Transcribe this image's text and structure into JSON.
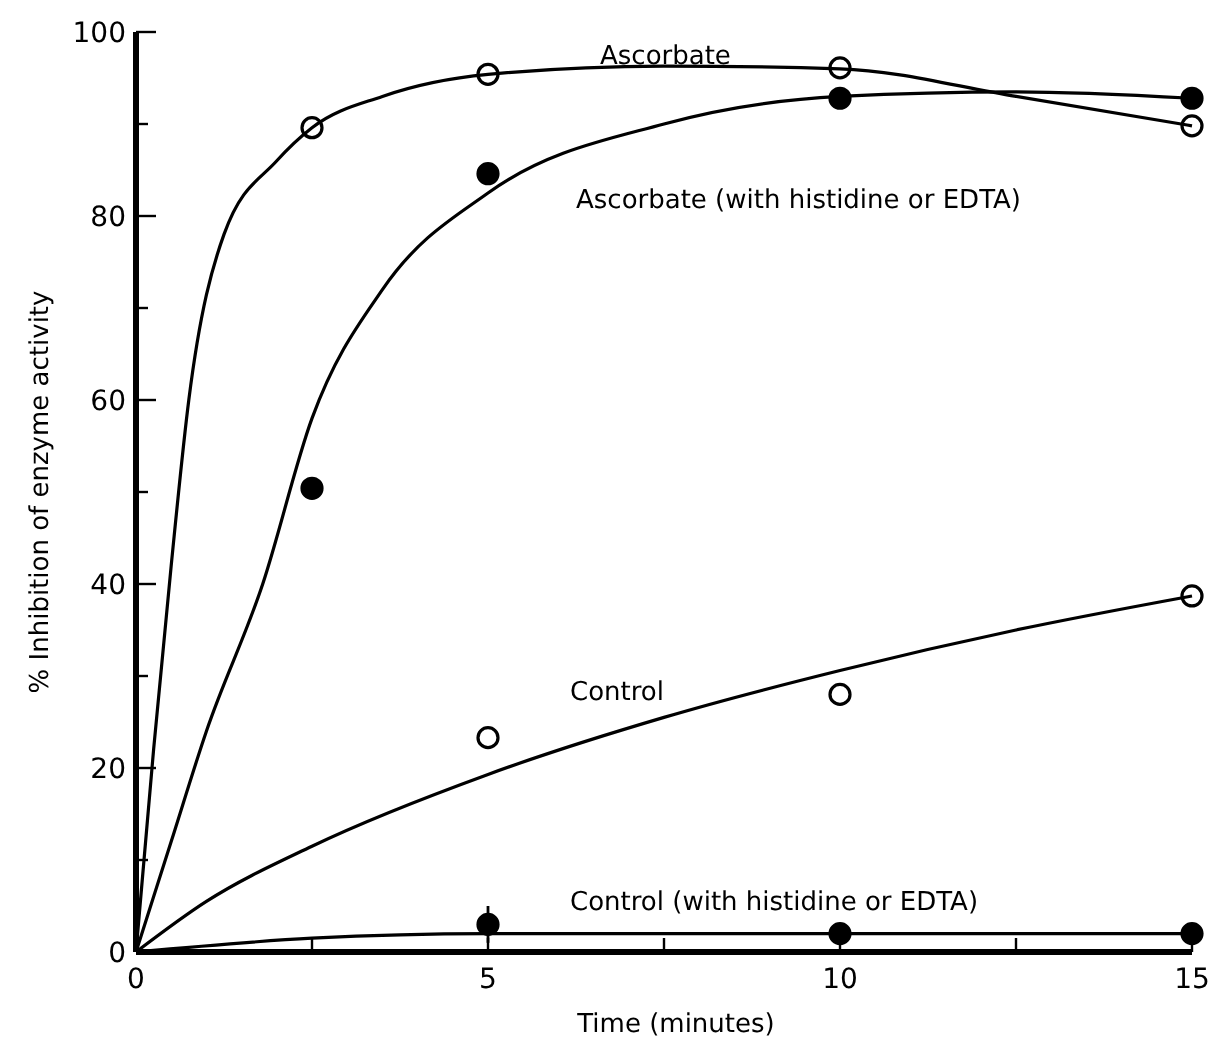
{
  "chart_data": {
    "type": "scatter",
    "xlabel": "Time (minutes)",
    "ylabel": "% Inhibition of enzyme activity",
    "xlim": [
      0,
      15
    ],
    "ylim": [
      0,
      100
    ],
    "xticks": [
      0,
      {
        "value": 2.5,
        "label": null
      },
      5,
      {
        "value": 7.5,
        "label": null
      },
      10,
      {
        "value": 12.5,
        "label": null
      },
      15
    ],
    "yticks": [
      0,
      {
        "value": 10,
        "label": null
      },
      20,
      {
        "value": 30,
        "label": null
      },
      40,
      {
        "value": 50,
        "label": null
      },
      60,
      {
        "value": 70,
        "label": null
      },
      80,
      {
        "value": 90,
        "label": null
      },
      100
    ],
    "grid": false,
    "legend": false,
    "marker": "circle",
    "series": [
      {
        "color": "#ffffff",
        "x": [
          2.5,
          5,
          10,
          15
        ],
        "values": [
          89.6,
          95.4,
          96.1,
          89.8
        ]
      },
      {
        "color": "#000000",
        "x": [
          2.5,
          5,
          10,
          15
        ],
        "values": [
          50.4,
          84.6,
          92.8,
          92.8
        ]
      },
      {
        "color": "#ffffff",
        "x": [
          5,
          10,
          15
        ],
        "values": [
          23.3,
          28,
          38.7
        ]
      },
      {
        "color": "#000000",
        "x": [
          5,
          10,
          15
        ],
        "values": [
          3,
          2,
          2
        ],
        "errors": [
          2,
          null,
          null
        ]
      },
      {
        "type": "line",
        "name": "Ascorbate",
        "color": "#000000",
        "marker": "none",
        "line_style": "solid",
        "x": [
          0,
          0.25,
          0.5,
          0.75,
          1.25,
          2,
          2.5,
          3.5,
          5,
          7.5,
          10,
          12.5,
          15
        ],
        "values": [
          0,
          22,
          42,
          60,
          78,
          86,
          89.6,
          93,
          95.4,
          96.3,
          96,
          93,
          89.8
        ]
      },
      {
        "type": "line",
        "name": "Ascorbate (with histidine or EDTA)",
        "color": "#000000",
        "marker": "none",
        "line_style": "solid",
        "x": [
          0,
          0.5,
          1,
          1.8,
          2.5,
          3.5,
          5,
          7.5,
          10,
          12.5,
          15
        ],
        "values": [
          0,
          12,
          24,
          40,
          58,
          72,
          82.5,
          90,
          93,
          93.5,
          92.8
        ]
      },
      {
        "type": "line",
        "name": "Control",
        "color": "#000000",
        "marker": "none",
        "line_style": "solid",
        "x": [
          0,
          1,
          2.5,
          5,
          7.5,
          10,
          12.5,
          15
        ],
        "values": [
          0,
          5.5,
          11.5,
          19.3,
          25.5,
          30.6,
          35,
          38.7
        ]
      },
      {
        "type": "line",
        "name": "Control (with histidine or EDTA)",
        "color": "#000000",
        "marker": "none",
        "line_style": "solid",
        "x": [
          0,
          2.5,
          5,
          10,
          15
        ],
        "values": [
          0,
          1.5,
          2,
          2,
          2
        ]
      }
    ]
  }
}
